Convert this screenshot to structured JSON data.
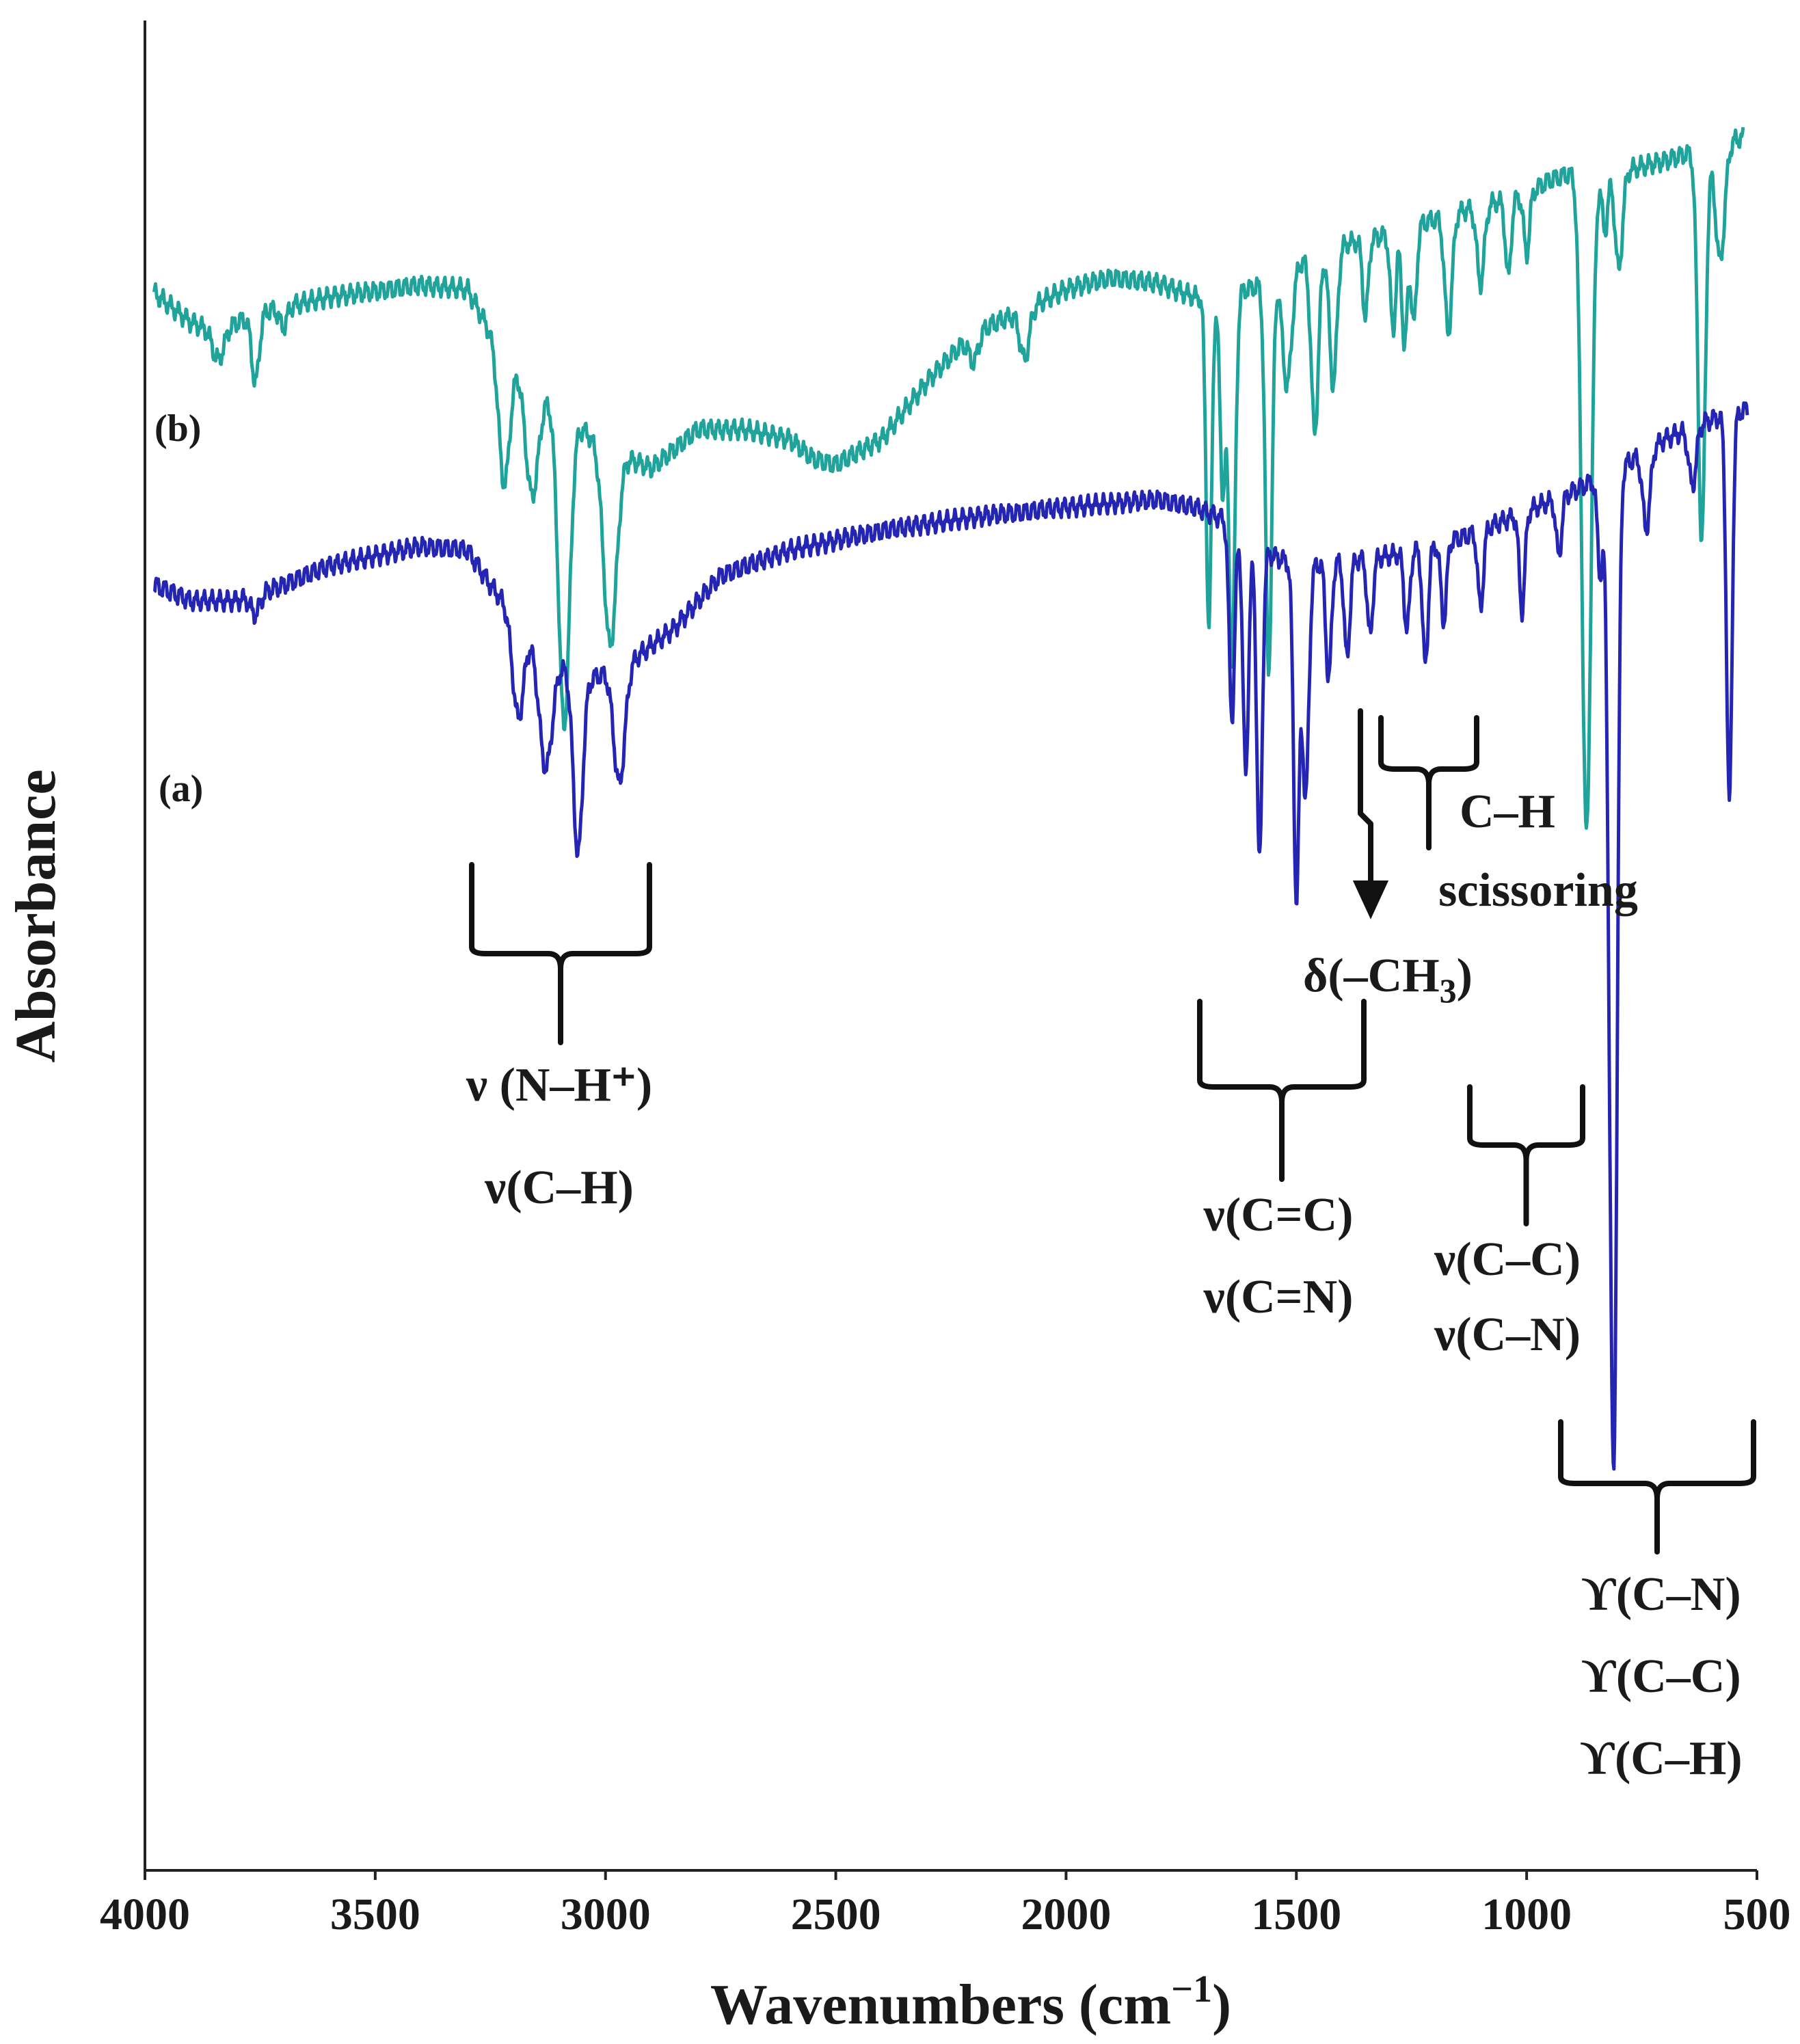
{
  "chart_data": {
    "type": "line",
    "title": "",
    "xlabel": "Wavenumbers (cm",
    "xlabel_sup": "−1",
    "xlabel_end": ")",
    "ylabel": "Absorbance",
    "xlim": [
      4000,
      500
    ],
    "x_reversed": true,
    "grid": false,
    "x_ticks": [
      "4000",
      "3500",
      "3000",
      "2500",
      "2000",
      "1500",
      "1000",
      "500"
    ],
    "x_tick_values": [
      4000,
      3500,
      3000,
      2500,
      2000,
      1500,
      1000,
      500
    ],
    "series": [
      {
        "name": "(b)",
        "color": "#20a39a",
        "baseline": [
          [
            3980,
            0.81
          ],
          [
            3900,
            0.795
          ],
          [
            3850,
            0.79
          ],
          [
            3750,
            0.8
          ],
          [
            3600,
            0.808
          ],
          [
            3400,
            0.814
          ],
          [
            3300,
            0.812
          ],
          [
            3250,
            0.79
          ],
          [
            3100,
            0.75
          ],
          [
            3000,
            0.73
          ],
          [
            2900,
            0.72
          ],
          [
            2800,
            0.74
          ],
          [
            2700,
            0.74
          ],
          [
            2600,
            0.735
          ],
          [
            2550,
            0.725
          ],
          [
            2500,
            0.722
          ],
          [
            2400,
            0.735
          ],
          [
            2300,
            0.765
          ],
          [
            2200,
            0.79
          ],
          [
            2100,
            0.8
          ],
          [
            2000,
            0.812
          ],
          [
            1900,
            0.818
          ],
          [
            1800,
            0.815
          ],
          [
            1720,
            0.808
          ],
          [
            1600,
            0.812
          ],
          [
            1500,
            0.825
          ],
          [
            1400,
            0.835
          ],
          [
            1300,
            0.84
          ],
          [
            1200,
            0.848
          ],
          [
            1100,
            0.855
          ],
          [
            1000,
            0.86
          ],
          [
            950,
            0.868
          ],
          [
            900,
            0.872
          ],
          [
            800,
            0.872
          ],
          [
            700,
            0.878
          ],
          [
            600,
            0.885
          ],
          [
            530,
            0.89
          ]
        ],
        "peaks": [
          [
            3840,
            0.015,
            12
          ],
          [
            3760,
            0.035,
            8
          ],
          [
            3700,
            0.01,
            8
          ],
          [
            3220,
            0.07,
            12
          ],
          [
            3160,
            0.06,
            14
          ],
          [
            3090,
            0.16,
            12
          ],
          [
            2990,
            0.1,
            14
          ],
          [
            2200,
            0.015,
            10
          ],
          [
            2090,
            0.025,
            10
          ],
          [
            1690,
            0.17,
            6
          ],
          [
            1660,
            0.1,
            6
          ],
          [
            1640,
            0.19,
            7
          ],
          [
            1560,
            0.2,
            7
          ],
          [
            1520,
            0.06,
            10
          ],
          [
            1460,
            0.09,
            8
          ],
          [
            1420,
            0.07,
            8
          ],
          [
            1350,
            0.04,
            6
          ],
          [
            1290,
            0.05,
            6
          ],
          [
            1265,
            0.06,
            6
          ],
          [
            1245,
            0.05,
            6
          ],
          [
            1170,
            0.06,
            8
          ],
          [
            1100,
            0.04,
            8
          ],
          [
            1040,
            0.04,
            6
          ],
          [
            1000,
            0.03,
            6
          ],
          [
            870,
            0.34,
            10
          ],
          [
            830,
            0.03,
            6
          ],
          [
            800,
            0.05,
            8
          ],
          [
            620,
            0.2,
            8
          ],
          [
            580,
            0.06,
            10
          ]
        ]
      },
      {
        "name": "(a)",
        "color": "#2525b3",
        "baseline": [
          [
            3980,
            0.66
          ],
          [
            3900,
            0.652
          ],
          [
            3800,
            0.652
          ],
          [
            3700,
            0.66
          ],
          [
            3600,
            0.67
          ],
          [
            3500,
            0.675
          ],
          [
            3400,
            0.68
          ],
          [
            3300,
            0.678
          ],
          [
            3250,
            0.66
          ],
          [
            3150,
            0.63
          ],
          [
            3050,
            0.61
          ],
          [
            2950,
            0.62
          ],
          [
            2850,
            0.638
          ],
          [
            2750,
            0.665
          ],
          [
            2600,
            0.678
          ],
          [
            2400,
            0.688
          ],
          [
            2200,
            0.695
          ],
          [
            2000,
            0.7
          ],
          [
            1800,
            0.704
          ],
          [
            1720,
            0.7
          ],
          [
            1640,
            0.692
          ],
          [
            1600,
            0.68
          ],
          [
            1500,
            0.67
          ],
          [
            1400,
            0.672
          ],
          [
            1300,
            0.675
          ],
          [
            1200,
            0.68
          ],
          [
            1100,
            0.688
          ],
          [
            1000,
            0.698
          ],
          [
            900,
            0.708
          ],
          [
            800,
            0.72
          ],
          [
            700,
            0.735
          ],
          [
            600,
            0.745
          ],
          [
            520,
            0.75
          ]
        ],
        "peaks": [
          [
            3760,
            0.01,
            10
          ],
          [
            3190,
            0.05,
            12
          ],
          [
            3130,
            0.06,
            14
          ],
          [
            3060,
            0.09,
            10
          ],
          [
            2970,
            0.06,
            12
          ],
          [
            1640,
            0.1,
            6
          ],
          [
            1610,
            0.12,
            6
          ],
          [
            1580,
            0.16,
            6
          ],
          [
            1500,
            0.17,
            6
          ],
          [
            1480,
            0.12,
            7
          ],
          [
            1430,
            0.06,
            6
          ],
          [
            1390,
            0.05,
            6
          ],
          [
            1340,
            0.04,
            6
          ],
          [
            1260,
            0.04,
            6
          ],
          [
            1220,
            0.06,
            6
          ],
          [
            1180,
            0.04,
            6
          ],
          [
            1100,
            0.04,
            6
          ],
          [
            1010,
            0.05,
            6
          ],
          [
            930,
            0.03,
            6
          ],
          [
            840,
            0.05,
            6
          ],
          [
            820,
            0.15,
            6
          ],
          [
            810,
            0.47,
            7
          ],
          [
            740,
            0.04,
            8
          ],
          [
            640,
            0.03,
            8
          ],
          [
            560,
            0.2,
            6
          ]
        ]
      }
    ],
    "series_labels": [
      {
        "text": "(b)"
      },
      {
        "text": "(a)"
      }
    ],
    "annotations": [
      {
        "lines": [
          "ν (N–H⁺)",
          "ν(C–H)"
        ]
      },
      {
        "lines": [
          "ν(C=C)",
          "ν(C=N)"
        ]
      },
      {
        "lines": [
          "δ(–CH",
          "3",
          ")"
        ]
      },
      {
        "lines": [
          "C–H",
          "scissoring"
        ]
      },
      {
        "lines": [
          "ν(C–C)",
          "ν(C–N)"
        ]
      },
      {
        "lines": [
          "ϒ(C–N)",
          "ϒ(C–C)",
          "ϒ(C–H)"
        ]
      }
    ]
  }
}
